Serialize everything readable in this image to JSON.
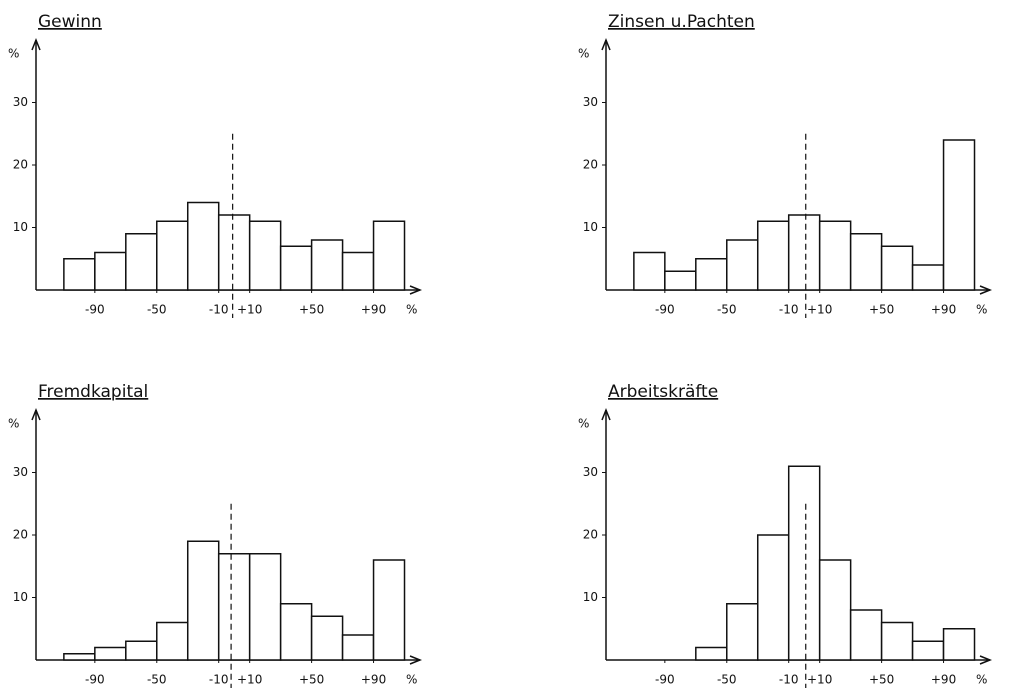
{
  "chart_data": [
    {
      "type": "histogram",
      "title": "Gewinn",
      "ylabel": "%",
      "xlabel": "%",
      "bins": [
        -110,
        -90,
        -70,
        -50,
        -30,
        -10,
        10,
        30,
        50,
        70,
        90,
        110
      ],
      "values": [
        5,
        6,
        9,
        11,
        14,
        12,
        11,
        7,
        8,
        6,
        11
      ],
      "xlim": [
        -128,
        120
      ],
      "ylim": [
        0,
        40
      ],
      "xticks": [
        -90,
        -50,
        -10,
        {
          "value": 10,
          "label": "+10"
        },
        {
          "value": 50,
          "label": "+50"
        },
        {
          "value": 90,
          "label": "+90"
        }
      ],
      "yticks": [
        10,
        20,
        30
      ],
      "marker": -1,
      "color": "#ffffff"
    },
    {
      "type": "histogram",
      "title": "Zinsen u.Pachten",
      "ylabel": "%",
      "xlabel": "%",
      "bins": [
        -110,
        -90,
        -70,
        -50,
        -30,
        -10,
        10,
        30,
        50,
        70,
        90,
        110
      ],
      "values": [
        6,
        3,
        5,
        8,
        11,
        12,
        11,
        9,
        7,
        4,
        24
      ],
      "xlim": [
        -128,
        120
      ],
      "ylim": [
        0,
        40
      ],
      "xticks": [
        -90,
        -50,
        -10,
        {
          "value": 10,
          "label": "+10"
        },
        {
          "value": 50,
          "label": "+50"
        },
        {
          "value": 90,
          "label": "+90"
        }
      ],
      "yticks": [
        10,
        20,
        30
      ],
      "marker": 1,
      "color": "#ffffff"
    },
    {
      "type": "histogram",
      "title": "Fremdkapital",
      "ylabel": "%",
      "xlabel": "%",
      "bins": [
        -110,
        -90,
        -70,
        -50,
        -30,
        -10,
        10,
        30,
        50,
        70,
        90,
        110
      ],
      "values": [
        1,
        2,
        3,
        6,
        19,
        17,
        17,
        9,
        7,
        4,
        16
      ],
      "xlim": [
        -128,
        120
      ],
      "ylim": [
        0,
        40
      ],
      "xticks": [
        -90,
        -50,
        -10,
        {
          "value": 10,
          "label": "+10"
        },
        {
          "value": 50,
          "label": "+50"
        },
        {
          "value": 90,
          "label": "+90"
        }
      ],
      "yticks": [
        10,
        20,
        30
      ],
      "marker": -2,
      "color": "#ffffff"
    },
    {
      "type": "histogram",
      "title": "Arbeitskräfte",
      "ylabel": "%",
      "xlabel": "%",
      "bins": [
        -110,
        -90,
        -70,
        -50,
        -30,
        -10,
        10,
        30,
        50,
        70,
        90,
        110
      ],
      "values": [
        0,
        0,
        2,
        9,
        20,
        31,
        16,
        8,
        6,
        3,
        5
      ],
      "xlim": [
        -128,
        120
      ],
      "ylim": [
        0,
        40
      ],
      "xticks": [
        -90,
        -50,
        -10,
        {
          "value": 10,
          "label": "+10"
        },
        {
          "value": 50,
          "label": "+50"
        },
        {
          "value": 90,
          "label": "+90"
        }
      ],
      "yticks": [
        10,
        20,
        30
      ],
      "marker": 1,
      "color": "#ffffff"
    }
  ]
}
